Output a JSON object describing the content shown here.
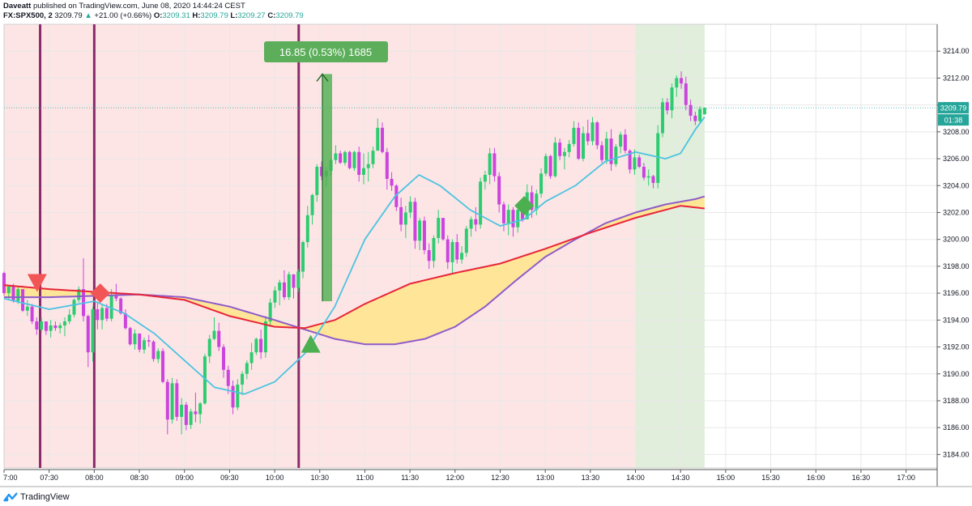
{
  "header": {
    "author": "Daveatt",
    "published_text": "published on TradingView.com, June 08, 2020 14:44:24 CEST",
    "symbol": "FX:SPX500, 2",
    "last": "3209.79",
    "change": "+21.00 (+0.66%)",
    "o_label": "O:",
    "o_val": "3209.31",
    "h_label": "H:",
    "h_val": "3209.79",
    "l_label": "L:",
    "l_val": "3209.27",
    "c_label": "C:",
    "c_val": "3209.79"
  },
  "footer": {
    "brand": "TradingView"
  },
  "chart_data": {
    "type": "candlestick",
    "ylim": [
      3183,
      3216
    ],
    "y_ticks": [
      "3184.00",
      "3186.00",
      "3188.00",
      "3190.00",
      "3192.00",
      "3194.00",
      "3196.00",
      "3198.00",
      "3200.00",
      "3202.00",
      "3204.00",
      "3206.00",
      "3208.00",
      "3210.00",
      "3212.00",
      "3214.00"
    ],
    "x_ticks": [
      "7:00",
      "07:30",
      "08:00",
      "08:30",
      "09:00",
      "09:30",
      "10:00",
      "10:30",
      "11:00",
      "11:30",
      "12:00",
      "12:30",
      "13:00",
      "13:30",
      "14:00",
      "14:30",
      "15:00",
      "15:30",
      "16:00",
      "16:30",
      "17:00"
    ],
    "price_label": "3209.79",
    "countdown_label": "01:38",
    "measure_label": "16.85 (0.53%) 1685",
    "colors": {
      "bull": "#2ecc71",
      "bear": "#cc44dd",
      "fast_ma": "#4cc3e0",
      "ema_red": "#e8243a",
      "sma_purple": "#8e5cc9",
      "cloud": "#ffe58a",
      "bg_red": "#fde5e5",
      "bg_green": "#e1eedc",
      "signal_red": "#f25555",
      "signal_green": "#4caf50",
      "vline": "#8a2b6a"
    },
    "background_zones": [
      {
        "color": "red",
        "start": "7:00",
        "end": "14:00"
      },
      {
        "color": "green",
        "start": "14:00",
        "end": "14:46"
      }
    ],
    "vertical_lines": [
      "07:24",
      "08:00",
      "10:16"
    ],
    "signals": [
      {
        "shape": "triangle-down",
        "color": "red",
        "time": "07:22",
        "price": 3196.7
      },
      {
        "shape": "diamond",
        "color": "red",
        "time": "08:04",
        "price": 3196.0
      },
      {
        "shape": "triangle-up",
        "color": "green",
        "time": "10:24",
        "price": 3192.3
      },
      {
        "shape": "diamond",
        "color": "green",
        "time": "12:46",
        "price": 3202.5
      }
    ],
    "measure": {
      "from_time": "10:30",
      "from_price": 3195.4,
      "to_price": 3212.3
    },
    "series": {
      "fast_ma": {
        "x": [
          "7:00",
          "7:30",
          "8:00",
          "8:20",
          "8:40",
          "9:00",
          "9:20",
          "9:40",
          "10:00",
          "10:20",
          "10:40",
          "11:00",
          "11:20",
          "11:36",
          "11:50",
          "12:10",
          "12:30",
          "12:46",
          "13:00",
          "13:20",
          "13:40",
          "14:00",
          "14:20",
          "14:30",
          "14:40",
          "14:46"
        ],
        "y": [
          3195.6,
          3194.8,
          3195.4,
          3194.5,
          3193.0,
          3191.0,
          3189.0,
          3188.5,
          3189.4,
          3191.5,
          3195.0,
          3200.0,
          3203.2,
          3204.8,
          3204.0,
          3202.2,
          3201.0,
          3201.5,
          3202.8,
          3204.0,
          3205.8,
          3206.5,
          3206.0,
          3206.4,
          3208.2,
          3209.1
        ]
      },
      "ema_red": {
        "x": [
          "7:00",
          "7:30",
          "8:00",
          "8:30",
          "9:00",
          "9:30",
          "10:00",
          "10:20",
          "10:40",
          "11:00",
          "11:30",
          "12:00",
          "12:30",
          "13:00",
          "13:30",
          "14:00",
          "14:30",
          "14:46"
        ],
        "y": [
          3196.6,
          3196.3,
          3196.1,
          3195.9,
          3195.5,
          3194.3,
          3193.5,
          3193.4,
          3194.0,
          3195.2,
          3196.7,
          3197.5,
          3198.2,
          3199.3,
          3200.5,
          3201.6,
          3202.5,
          3202.3
        ]
      },
      "sma_purple": {
        "x": [
          "7:00",
          "7:30",
          "8:00",
          "8:30",
          "9:00",
          "9:30",
          "10:00",
          "10:20",
          "10:40",
          "11:00",
          "11:20",
          "11:40",
          "12:00",
          "12:20",
          "12:40",
          "13:00",
          "13:20",
          "13:40",
          "14:00",
          "14:20",
          "14:40",
          "14:46"
        ],
        "y": [
          3195.7,
          3195.7,
          3195.8,
          3195.9,
          3195.7,
          3195.0,
          3194.0,
          3193.3,
          3192.6,
          3192.2,
          3192.2,
          3192.6,
          3193.5,
          3195.0,
          3196.9,
          3198.7,
          3200.0,
          3201.2,
          3202.0,
          3202.6,
          3203.0,
          3203.2
        ]
      }
    },
    "candles_ohlc": [
      [
        3197.5,
        3197.6,
        3195.8,
        3196.0
      ],
      [
        3196.0,
        3196.6,
        3195.5,
        3196.5
      ],
      [
        3196.5,
        3196.7,
        3195.3,
        3195.4
      ],
      [
        3195.4,
        3196.5,
        3195.2,
        3196.3
      ],
      [
        3196.3,
        3196.3,
        3194.6,
        3194.7
      ],
      [
        3194.7,
        3195.5,
        3194.3,
        3195.0
      ],
      [
        3195.0,
        3195.2,
        3193.7,
        3193.9
      ],
      [
        3193.9,
        3194.2,
        3192.9,
        3193.3
      ],
      [
        3193.3,
        3194.2,
        3193.1,
        3193.9
      ],
      [
        3193.9,
        3193.9,
        3192.9,
        3193.2
      ],
      [
        3193.2,
        3194.0,
        3192.7,
        3193.6
      ],
      [
        3193.6,
        3193.9,
        3193.2,
        3193.4
      ],
      [
        3193.4,
        3193.8,
        3193.0,
        3193.6
      ],
      [
        3193.6,
        3194.2,
        3192.8,
        3193.9
      ],
      [
        3193.9,
        3194.8,
        3193.7,
        3194.4
      ],
      [
        3194.4,
        3195.6,
        3194.2,
        3195.5
      ],
      [
        3195.5,
        3196.5,
        3195.3,
        3196.3
      ],
      [
        3196.3,
        3198.6,
        3193.9,
        3194.3
      ],
      [
        3194.3,
        3194.4,
        3190.5,
        3191.6
      ],
      [
        3191.6,
        3195.0,
        3190.9,
        3194.8
      ],
      [
        3194.8,
        3195.3,
        3193.3,
        3194.0
      ],
      [
        3194.0,
        3195.2,
        3193.3,
        3194.9
      ],
      [
        3194.9,
        3195.2,
        3193.9,
        3194.1
      ],
      [
        3194.1,
        3196.3,
        3193.9,
        3195.9
      ],
      [
        3195.9,
        3196.7,
        3195.4,
        3195.6
      ],
      [
        3195.6,
        3195.7,
        3194.4,
        3194.5
      ],
      [
        3194.5,
        3194.8,
        3193.3,
        3193.4
      ],
      [
        3193.4,
        3193.5,
        3192.1,
        3192.2
      ],
      [
        3192.2,
        3193.3,
        3191.8,
        3193.0
      ],
      [
        3193.0,
        3193.0,
        3191.6,
        3191.8
      ],
      [
        3191.8,
        3192.7,
        3191.5,
        3192.5
      ],
      [
        3192.5,
        3192.9,
        3192.0,
        3192.4
      ],
      [
        3192.4,
        3192.5,
        3190.9,
        3191.1
      ],
      [
        3191.1,
        3191.9,
        3190.8,
        3191.7
      ],
      [
        3191.7,
        3191.9,
        3189.3,
        3189.4
      ],
      [
        3189.4,
        3189.6,
        3185.5,
        3186.6
      ],
      [
        3186.6,
        3189.7,
        3186.3,
        3189.3
      ],
      [
        3189.3,
        3189.6,
        3186.5,
        3186.8
      ],
      [
        3186.8,
        3188.2,
        3185.5,
        3187.7
      ],
      [
        3187.7,
        3187.9,
        3185.8,
        3186.2
      ],
      [
        3186.2,
        3187.4,
        3185.9,
        3187.2
      ],
      [
        3187.2,
        3188.6,
        3186.4,
        3187.0
      ],
      [
        3187.0,
        3187.9,
        3186.3,
        3187.8
      ],
      [
        3187.8,
        3191.5,
        3187.7,
        3191.3
      ],
      [
        3191.3,
        3192.9,
        3190.8,
        3192.6
      ],
      [
        3192.6,
        3194.2,
        3192.5,
        3193.2
      ],
      [
        3193.2,
        3193.8,
        3191.7,
        3192.0
      ],
      [
        3192.0,
        3192.2,
        3189.7,
        3190.3
      ],
      [
        3190.3,
        3190.6,
        3188.5,
        3189.1
      ],
      [
        3189.1,
        3189.5,
        3187.0,
        3187.5
      ],
      [
        3187.5,
        3189.6,
        3187.3,
        3189.2
      ],
      [
        3189.2,
        3190.2,
        3188.4,
        3190.0
      ],
      [
        3190.0,
        3191.0,
        3189.6,
        3190.8
      ],
      [
        3190.8,
        3192.3,
        3190.3,
        3191.6
      ],
      [
        3191.6,
        3192.7,
        3191.4,
        3192.6
      ],
      [
        3192.6,
        3193.3,
        3191.1,
        3191.6
      ],
      [
        3191.6,
        3194.3,
        3191.2,
        3193.9
      ],
      [
        3193.9,
        3195.6,
        3193.5,
        3195.3
      ],
      [
        3195.3,
        3196.5,
        3194.9,
        3196.2
      ],
      [
        3196.2,
        3197.0,
        3195.1,
        3196.8
      ],
      [
        3196.8,
        3197.7,
        3195.5,
        3195.7
      ],
      [
        3195.7,
        3197.6,
        3195.5,
        3197.4
      ],
      [
        3197.4,
        3197.4,
        3195.6,
        3196.4
      ],
      [
        3196.4,
        3197.8,
        3196.1,
        3197.6
      ],
      [
        3197.6,
        3199.9,
        3197.1,
        3199.8
      ],
      [
        3199.8,
        3202.5,
        3199.4,
        3201.8
      ],
      [
        3201.8,
        3203.4,
        3201.1,
        3203.3
      ],
      [
        3203.3,
        3205.6,
        3202.8,
        3205.4
      ],
      [
        3205.4,
        3205.8,
        3204.4,
        3204.7
      ],
      [
        3204.7,
        3205.4,
        3203.9,
        3205.1
      ],
      [
        3205.1,
        3206.0,
        3204.7,
        3205.9
      ],
      [
        3205.9,
        3207.0,
        3205.6,
        3206.4
      ],
      [
        3206.4,
        3206.6,
        3205.6,
        3205.7
      ],
      [
        3205.7,
        3206.6,
        3205.5,
        3206.5
      ],
      [
        3206.5,
        3206.6,
        3205.2,
        3205.3
      ],
      [
        3205.3,
        3206.6,
        3205.1,
        3206.5
      ],
      [
        3206.5,
        3206.9,
        3204.3,
        3204.8
      ],
      [
        3204.8,
        3206.4,
        3204.1,
        3205.3
      ],
      [
        3205.3,
        3206.5,
        3204.3,
        3205.6
      ],
      [
        3205.6,
        3206.9,
        3205.3,
        3206.6
      ],
      [
        3206.6,
        3209.0,
        3206.6,
        3208.3
      ],
      [
        3208.3,
        3208.7,
        3206.4,
        3206.5
      ],
      [
        3206.5,
        3206.8,
        3203.7,
        3204.5
      ],
      [
        3204.5,
        3205.0,
        3203.6,
        3204.0
      ],
      [
        3204.0,
        3204.1,
        3202.1,
        3202.4
      ],
      [
        3202.4,
        3203.1,
        3200.6,
        3201.1
      ],
      [
        3201.1,
        3202.5,
        3200.1,
        3202.0
      ],
      [
        3202.0,
        3203.2,
        3201.6,
        3202.8
      ],
      [
        3202.8,
        3203.1,
        3199.3,
        3199.9
      ],
      [
        3199.9,
        3201.6,
        3199.2,
        3201.4
      ],
      [
        3201.4,
        3201.7,
        3198.9,
        3199.2
      ],
      [
        3199.2,
        3199.7,
        3197.8,
        3198.4
      ],
      [
        3198.4,
        3200.3,
        3197.9,
        3200.1
      ],
      [
        3200.1,
        3202.2,
        3199.7,
        3201.6
      ],
      [
        3201.6,
        3201.6,
        3199.9,
        3200.0
      ],
      [
        3200.0,
        3200.3,
        3197.8,
        3198.3
      ],
      [
        3198.3,
        3200.0,
        3197.5,
        3199.8
      ],
      [
        3199.8,
        3200.4,
        3198.2,
        3198.5
      ],
      [
        3198.5,
        3199.5,
        3198.2,
        3199.0
      ],
      [
        3199.0,
        3201.0,
        3198.7,
        3200.8
      ],
      [
        3200.8,
        3201.7,
        3200.2,
        3201.5
      ],
      [
        3201.5,
        3202.4,
        3200.6,
        3201.1
      ],
      [
        3201.1,
        3204.6,
        3200.8,
        3204.3
      ],
      [
        3204.3,
        3205.1,
        3203.7,
        3204.8
      ],
      [
        3204.8,
        3206.8,
        3204.1,
        3206.4
      ],
      [
        3206.4,
        3206.8,
        3204.3,
        3204.7
      ],
      [
        3204.7,
        3205.0,
        3202.0,
        3202.6
      ],
      [
        3202.6,
        3202.8,
        3200.6,
        3201.2
      ],
      [
        3201.2,
        3202.6,
        3200.3,
        3202.2
      ],
      [
        3202.2,
        3202.4,
        3200.2,
        3200.9
      ],
      [
        3200.9,
        3202.6,
        3200.5,
        3202.2
      ],
      [
        3202.2,
        3202.4,
        3201.3,
        3201.5
      ],
      [
        3201.5,
        3204.1,
        3201.5,
        3203.5
      ],
      [
        3203.5,
        3204.0,
        3201.6,
        3202.2
      ],
      [
        3202.2,
        3203.7,
        3201.8,
        3203.4
      ],
      [
        3203.4,
        3205.3,
        3203.1,
        3204.9
      ],
      [
        3204.9,
        3206.4,
        3204.7,
        3206.2
      ],
      [
        3206.2,
        3206.3,
        3204.5,
        3204.7
      ],
      [
        3204.7,
        3207.6,
        3204.6,
        3207.2
      ],
      [
        3207.2,
        3207.5,
        3205.9,
        3206.2
      ],
      [
        3206.2,
        3206.8,
        3205.2,
        3206.5
      ],
      [
        3206.5,
        3207.4,
        3206.1,
        3207.1
      ],
      [
        3207.1,
        3208.8,
        3206.9,
        3208.3
      ],
      [
        3208.3,
        3208.7,
        3205.9,
        3206.0
      ],
      [
        3206.0,
        3208.4,
        3205.8,
        3207.9
      ],
      [
        3207.9,
        3208.9,
        3207.0,
        3207.3
      ],
      [
        3207.3,
        3209.1,
        3207.0,
        3208.7
      ],
      [
        3208.7,
        3208.8,
        3206.7,
        3207.0
      ],
      [
        3207.0,
        3207.3,
        3205.7,
        3205.9
      ],
      [
        3205.9,
        3208.0,
        3205.6,
        3207.5
      ],
      [
        3207.5,
        3208.2,
        3205.1,
        3205.6
      ],
      [
        3205.6,
        3207.1,
        3205.4,
        3206.9
      ],
      [
        3206.9,
        3208.0,
        3206.4,
        3207.8
      ],
      [
        3207.8,
        3208.2,
        3206.4,
        3206.6
      ],
      [
        3206.6,
        3206.7,
        3204.9,
        3205.2
      ],
      [
        3205.2,
        3206.7,
        3204.8,
        3206.1
      ],
      [
        3206.1,
        3206.3,
        3205.3,
        3205.4
      ],
      [
        3205.4,
        3205.7,
        3204.4,
        3204.6
      ],
      [
        3204.6,
        3205.2,
        3204.0,
        3204.7
      ],
      [
        3204.7,
        3204.8,
        3203.8,
        3204.2
      ],
      [
        3204.2,
        3208.5,
        3203.8,
        3207.9
      ],
      [
        3207.9,
        3210.5,
        3207.6,
        3210.2
      ],
      [
        3210.2,
        3210.5,
        3209.3,
        3209.6
      ],
      [
        3209.6,
        3211.6,
        3209.0,
        3211.3
      ],
      [
        3211.3,
        3212.2,
        3210.6,
        3212.0
      ],
      [
        3212.0,
        3212.5,
        3211.2,
        3211.6
      ],
      [
        3211.6,
        3212.1,
        3209.6,
        3210.0
      ],
      [
        3210.0,
        3210.4,
        3208.8,
        3209.2
      ],
      [
        3209.2,
        3209.5,
        3208.5,
        3208.8
      ],
      [
        3208.8,
        3209.9,
        3208.6,
        3209.7
      ],
      [
        3209.31,
        3209.79,
        3209.27,
        3209.79
      ]
    ]
  }
}
